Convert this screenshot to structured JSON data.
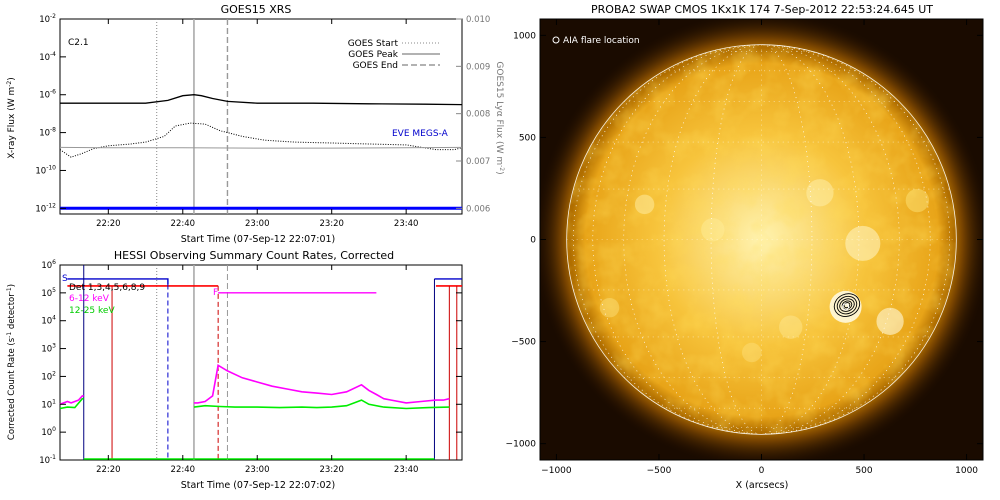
{
  "chart_data": [
    {
      "type": "line",
      "title": "GOES15 XRS",
      "flare_class": "C2.1",
      "xlabel": "Start Time (07-Sep-12 22:07:01)",
      "ylabel": "X-ray Flux (W m",
      "ylabel_sup": "-2",
      "ylabel_end": ")",
      "y2label": "GOES15 Lyα Flux (W m",
      "y2label_sup": "-2",
      "y2label_end": ")",
      "x_ticks": [
        "22:20",
        "22:40",
        "23:00",
        "23:20",
        "23:40"
      ],
      "y_ticks": [
        {
          "base": "10",
          "exp": "-2"
        },
        {
          "base": "10",
          "exp": "-4"
        },
        {
          "base": "10",
          "exp": "-6"
        },
        {
          "base": "10",
          "exp": "-8"
        },
        {
          "base": "10",
          "exp": "-10"
        },
        {
          "base": "10",
          "exp": "-12"
        }
      ],
      "y2_ticks": [
        "0.010",
        "0.009",
        "0.008",
        "0.007",
        "0.006"
      ],
      "xlim_min": [
        7.02,
        115
      ],
      "ylim_log10": [
        -12.3,
        -2
      ],
      "y2lim": [
        0.006,
        0.01
      ],
      "legend": [
        {
          "name": "GOES Start",
          "style": "dotted"
        },
        {
          "name": "GOES Peak",
          "style": "solid"
        },
        {
          "name": "GOES End",
          "style": "dashed"
        }
      ],
      "legend_position": "top-right",
      "markers_min": {
        "start": 33,
        "peak": 43,
        "end": 52
      },
      "eve_label": "EVE MEGS-A",
      "series": [
        {
          "name": "",
          "color": "#000000",
          "x": [
            7.02,
            20,
            30,
            36,
            40,
            43,
            45,
            48,
            52,
            60,
            75,
            90,
            105,
            115
          ],
          "log10_y": [
            -6.45,
            -6.45,
            -6.45,
            -6.3,
            -6.05,
            -6.0,
            -6.05,
            -6.2,
            -6.35,
            -6.45,
            -6.45,
            -6.48,
            -6.5,
            -6.52
          ]
        },
        {
          "name": "",
          "color": "#000000",
          "style": "dotted",
          "x": [
            7.02,
            10,
            13,
            16,
            20,
            26,
            30,
            35,
            38,
            42,
            46,
            50,
            56,
            62,
            70,
            80,
            90,
            100,
            108,
            113,
            115
          ],
          "log10_y": [
            -8.9,
            -9.3,
            -9.1,
            -8.85,
            -8.7,
            -8.6,
            -8.5,
            -8.2,
            -7.65,
            -7.5,
            -7.55,
            -7.9,
            -8.2,
            -8.4,
            -8.5,
            -8.55,
            -8.6,
            -8.65,
            -8.9,
            -8.9,
            -8.8
          ]
        },
        {
          "name": "",
          "color": "#999999",
          "x": [
            7.02,
            20,
            40,
            60,
            80,
            100,
            115
          ],
          "log10_y": [
            -8.78,
            -8.8,
            -8.8,
            -8.82,
            -8.82,
            -8.8,
            -8.78
          ]
        },
        {
          "name": "EVE MEGS-A",
          "color": "#0000ff",
          "x": [
            7.02,
            115
          ],
          "log10_y": [
            -12.0,
            -12.0
          ]
        }
      ]
    },
    {
      "type": "line",
      "title": "HESSI Observing Summary Count Rates, Corrected",
      "xlabel": "Start Time (07-Sep-12 22:07:02)",
      "ylabel": "Corrected Count Rate (s",
      "ylabel_sup": "-1",
      "ylabel_mid": " detector",
      "ylabel_sup2": "-1",
      "ylabel_end": ")",
      "x_ticks": [
        "22:20",
        "22:40",
        "23:00",
        "23:20",
        "23:40"
      ],
      "y_ticks": [
        {
          "base": "10",
          "exp": "6"
        },
        {
          "base": "10",
          "exp": "5"
        },
        {
          "base": "10",
          "exp": "4"
        },
        {
          "base": "10",
          "exp": "3"
        },
        {
          "base": "10",
          "exp": "2"
        },
        {
          "base": "10",
          "exp": "1"
        },
        {
          "base": "10",
          "exp": "0"
        },
        {
          "base": "10",
          "exp": "-1"
        }
      ],
      "xlim_min": [
        7.02,
        115
      ],
      "ylim_log10": [
        -1,
        6
      ],
      "detector_label": "Det 1,3,4,5,6,8,9",
      "flag_labels": {
        "s": "S",
        "f": "F"
      },
      "legend": [
        {
          "name": "6-12 keV",
          "color": "#ff00ff"
        },
        {
          "name": "12-25 keV",
          "color": "#00ee00"
        }
      ],
      "legend_position": "top-left",
      "markers_min": {
        "start": 33,
        "peak": 43,
        "end": 52
      },
      "series": [
        {
          "name": "6-12 keV",
          "color": "#ff00ff",
          "x": [
            7.02,
            9,
            10,
            11,
            12,
            13,
            13.4,
            43,
            44,
            46,
            48,
            49.5,
            52,
            56,
            60,
            64,
            68,
            72,
            76,
            80,
            84,
            88,
            90,
            92,
            94,
            96,
            100,
            104,
            108,
            110,
            111.6
          ],
          "log10_y": [
            1.0,
            1.1,
            1.05,
            1.1,
            1.15,
            1.3,
            1.3,
            1.05,
            1.05,
            1.1,
            1.3,
            2.4,
            2.2,
            1.95,
            1.8,
            1.65,
            1.55,
            1.45,
            1.4,
            1.35,
            1.45,
            1.7,
            1.5,
            1.35,
            1.2,
            1.15,
            1.05,
            1.1,
            1.15,
            1.15,
            1.2
          ]
        },
        {
          "name": "12-25 keV",
          "color": "#00ee00",
          "x": [
            7.02,
            9,
            11,
            13,
            13.4,
            43,
            46,
            50,
            54,
            60,
            66,
            72,
            76,
            80,
            84,
            88,
            90,
            94,
            100,
            106,
            111.6
          ],
          "log10_y": [
            0.85,
            0.9,
            0.88,
            1.2,
            1.2,
            0.9,
            0.95,
            0.92,
            0.9,
            0.9,
            0.88,
            0.9,
            0.88,
            0.9,
            0.95,
            1.15,
            1.0,
            0.9,
            0.85,
            0.88,
            0.9
          ]
        }
      ]
    },
    {
      "type": "scatter",
      "title": "PROBA2 SWAP CMOS 1Kx1K 174  7-Sep-2012 22:53:24.645 UT",
      "xlabel": "X (arcsecs)",
      "ylabel": "",
      "x_ticks": [
        "−1000",
        "−500",
        "0",
        "500",
        "1000"
      ],
      "y_ticks": [
        "1000",
        "500",
        "0",
        "−500",
        "−1000"
      ],
      "xlim": [
        -1080,
        1080
      ],
      "ylim": [
        -1080,
        1080
      ],
      "legend": [
        {
          "name": "AIA flare location",
          "marker": "circle"
        }
      ],
      "legend_position": "top-left",
      "solar_radius_arcsec": 950,
      "flare_location": {
        "x": 410,
        "y": -330
      },
      "colors": {
        "background": "#1a0b00",
        "disk_center": "#fff3b0",
        "disk_mid": "#f7c43c",
        "disk_edge": "#b06e00",
        "corona": "#ffb000"
      }
    }
  ]
}
